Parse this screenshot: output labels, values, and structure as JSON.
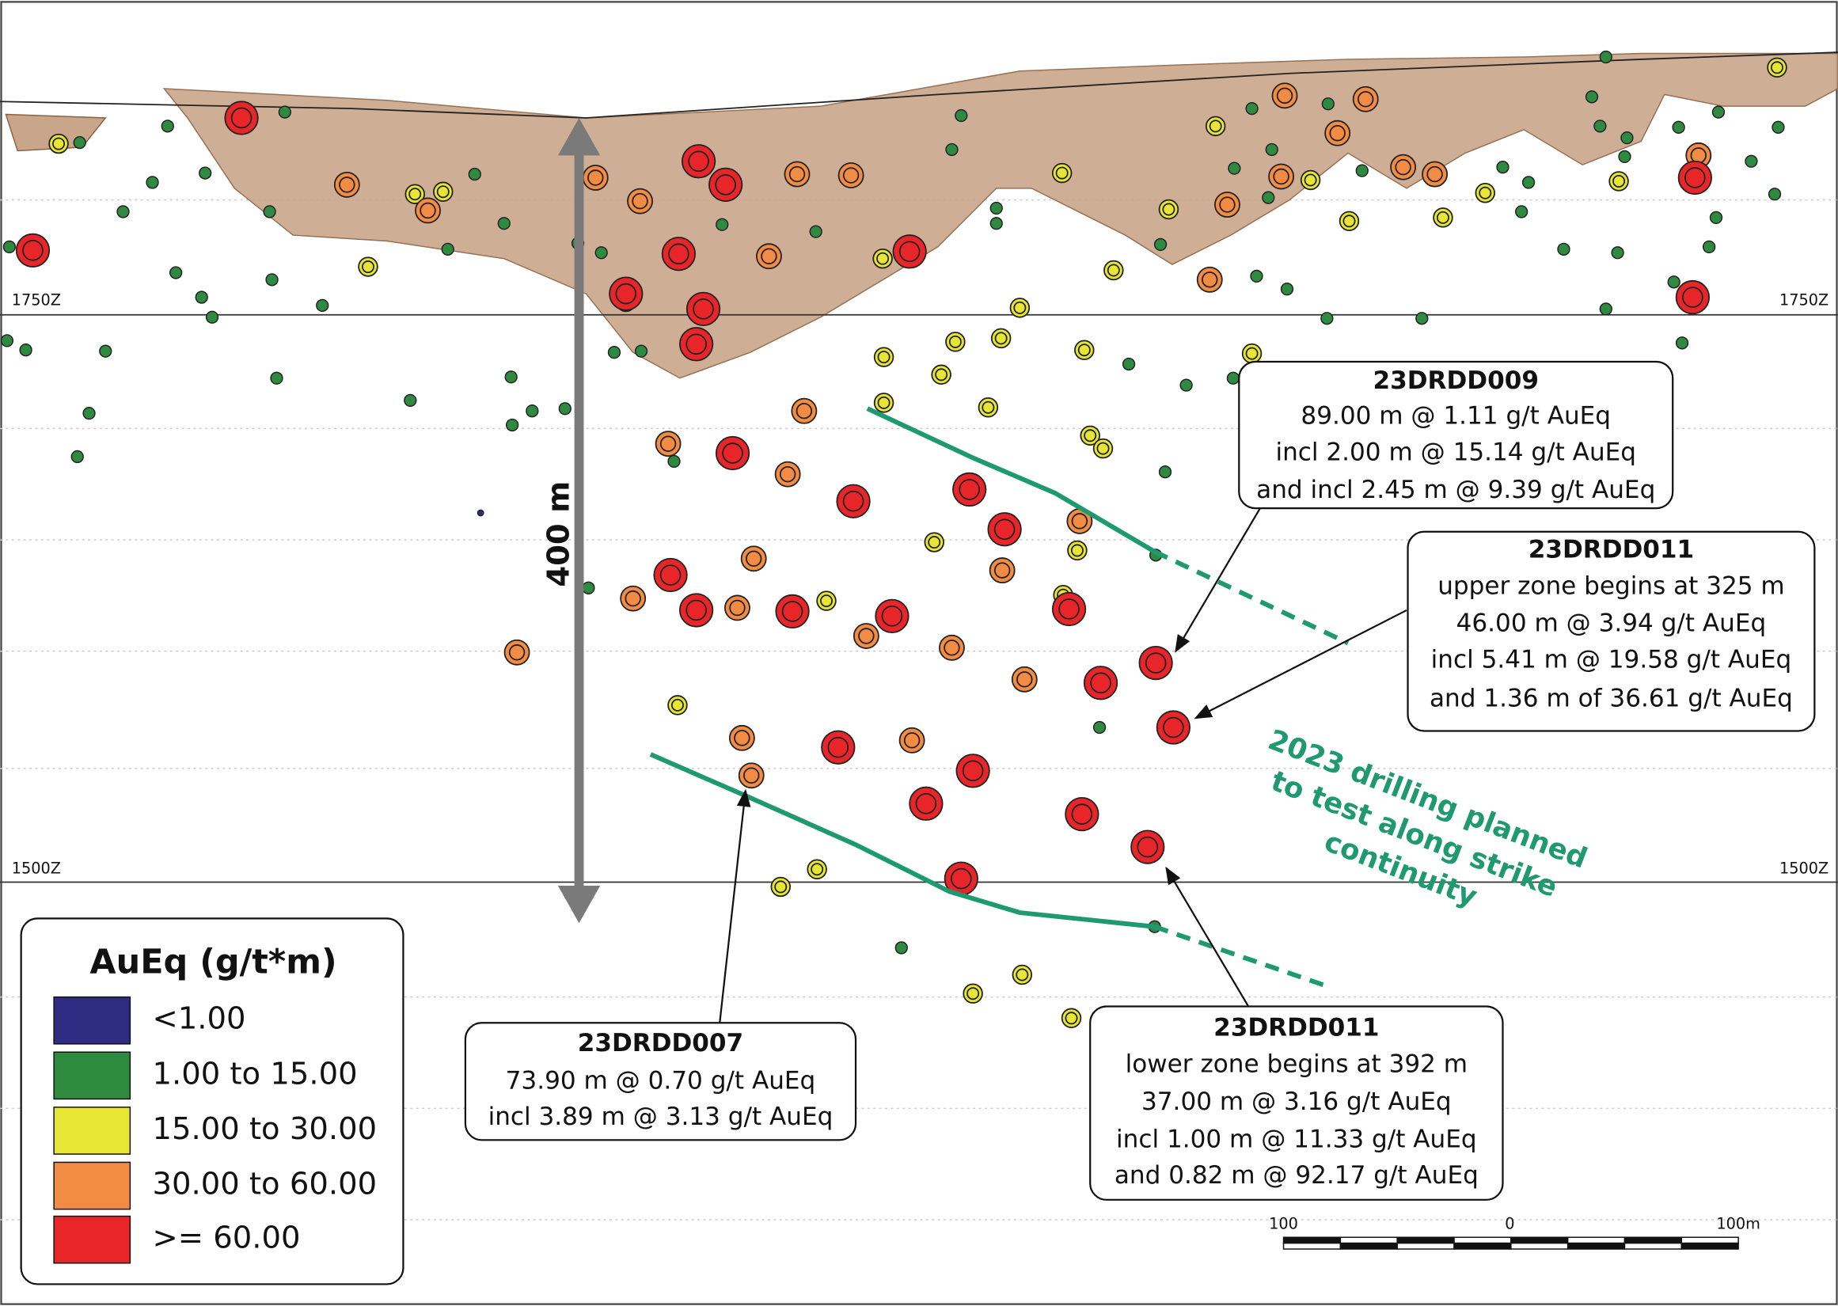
{
  "levels": [
    {
      "label": "1750Z"
    },
    {
      "label": "1500Z"
    }
  ],
  "scale_marker": "400 m",
  "legend": {
    "title": "AuEq (g/t*m)",
    "items": [
      {
        "label": "<1.00",
        "color": "#2e2d83"
      },
      {
        "label": "1.00 to 15.00",
        "color": "#2e8a3f"
      },
      {
        "label": "15.00 to 30.00",
        "color": "#e8e634"
      },
      {
        "label": "30.00 to 60.00",
        "color": "#f28c45"
      },
      {
        "label": ">= 60.00",
        "color": "#e8262a"
      }
    ]
  },
  "callouts": [
    {
      "title": "23DRDD009",
      "lines": [
        "89.00 m @ 1.11 g/t AuEq",
        "incl 2.00 m @ 15.14 g/t AuEq",
        "and incl 2.45 m @ 9.39 g/t AuEq"
      ]
    },
    {
      "title": "23DRDD011",
      "lines": [
        "upper zone begins at 325 m",
        "46.00 m @ 3.94 g/t AuEq",
        "incl 5.41 m @ 19.58 g/t AuEq",
        "and 1.36 m of 36.61 g/t AuEq"
      ]
    },
    {
      "title": "23DRDD007",
      "lines": [
        "73.90 m @ 0.70 g/t AuEq",
        "incl 3.89 m @ 3.13 g/t AuEq"
      ]
    },
    {
      "title": "23DRDD011",
      "lines": [
        "lower zone begins at 392 m",
        "37.00 m @ 3.16 g/t AuEq",
        "incl 1.00 m @ 11.33 g/t AuEq",
        "and 0.82 m @ 92.17 g/t AuEq"
      ]
    }
  ],
  "annotation": [
    "2023 drilling planned",
    "to test along strike",
    "continuity"
  ],
  "scale_bar": {
    "labels": [
      "100",
      "0",
      "100m"
    ]
  }
}
